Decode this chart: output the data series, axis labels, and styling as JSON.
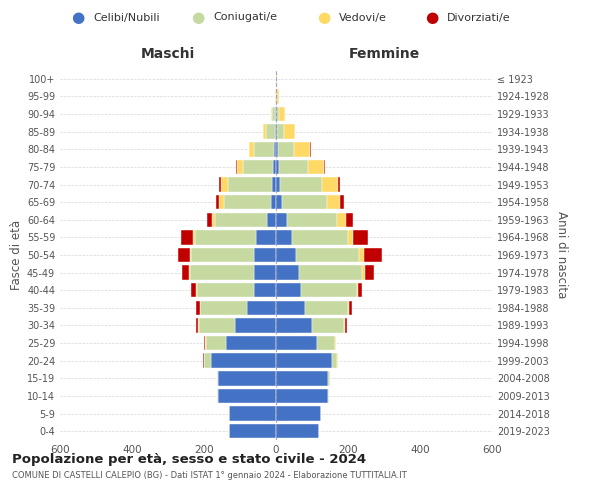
{
  "age_groups": [
    "0-4",
    "5-9",
    "10-14",
    "15-19",
    "20-24",
    "25-29",
    "30-34",
    "35-39",
    "40-44",
    "45-49",
    "50-54",
    "55-59",
    "60-64",
    "65-69",
    "70-74",
    "75-79",
    "80-84",
    "85-89",
    "90-94",
    "95-99",
    "100+"
  ],
  "birth_years": [
    "2019-2023",
    "2014-2018",
    "2009-2013",
    "2004-2008",
    "1999-2003",
    "1994-1998",
    "1989-1993",
    "1984-1988",
    "1979-1983",
    "1974-1978",
    "1969-1973",
    "1964-1968",
    "1959-1963",
    "1954-1958",
    "1949-1953",
    "1944-1948",
    "1939-1943",
    "1934-1938",
    "1929-1933",
    "1924-1928",
    "≤ 1923"
  ],
  "male_single": [
    130,
    130,
    160,
    160,
    180,
    140,
    115,
    80,
    60,
    60,
    60,
    55,
    25,
    15,
    12,
    8,
    5,
    2,
    2,
    0,
    0
  ],
  "male_married": [
    0,
    0,
    5,
    5,
    20,
    55,
    100,
    130,
    160,
    180,
    175,
    170,
    145,
    130,
    120,
    85,
    55,
    25,
    8,
    2,
    0
  ],
  "male_widowed": [
    0,
    0,
    0,
    0,
    1,
    1,
    1,
    1,
    1,
    2,
    3,
    5,
    8,
    12,
    20,
    15,
    15,
    10,
    5,
    1,
    0
  ],
  "male_divorced": [
    0,
    0,
    0,
    0,
    1,
    3,
    5,
    10,
    15,
    20,
    35,
    35,
    15,
    10,
    5,
    2,
    1,
    0,
    0,
    0,
    0
  ],
  "female_single": [
    120,
    125,
    145,
    145,
    155,
    115,
    100,
    80,
    70,
    65,
    55,
    45,
    30,
    18,
    12,
    8,
    5,
    3,
    1,
    1,
    0
  ],
  "female_married": [
    0,
    0,
    3,
    5,
    15,
    50,
    90,
    120,
    155,
    175,
    175,
    155,
    140,
    125,
    115,
    80,
    45,
    20,
    8,
    2,
    0
  ],
  "female_widowed": [
    0,
    0,
    0,
    0,
    1,
    1,
    2,
    2,
    4,
    8,
    15,
    15,
    25,
    35,
    45,
    45,
    45,
    30,
    15,
    5,
    2
  ],
  "female_divorced": [
    0,
    0,
    0,
    0,
    1,
    2,
    5,
    10,
    10,
    25,
    50,
    40,
    20,
    10,
    5,
    2,
    1,
    0,
    0,
    0,
    0
  ],
  "color_single": "#4472c4",
  "color_married": "#c5d9a0",
  "color_widowed": "#ffd966",
  "color_divorced": "#c00000",
  "title": "Popolazione per età, sesso e stato civile - 2024",
  "subtitle": "COMUNE DI CASTELLI CALEPIO (BG) - Dati ISTAT 1° gennaio 2024 - Elaborazione TUTTITALIA.IT",
  "xlabel_left": "Maschi",
  "xlabel_right": "Femmine",
  "ylabel_left": "Fasce di età",
  "ylabel_right": "Anni di nascita",
  "legend_labels": [
    "Celibi/Nubili",
    "Coniugati/e",
    "Vedovi/e",
    "Divorziati/e"
  ],
  "xlim": 600,
  "background_color": "#ffffff",
  "grid_color": "#cccccc"
}
